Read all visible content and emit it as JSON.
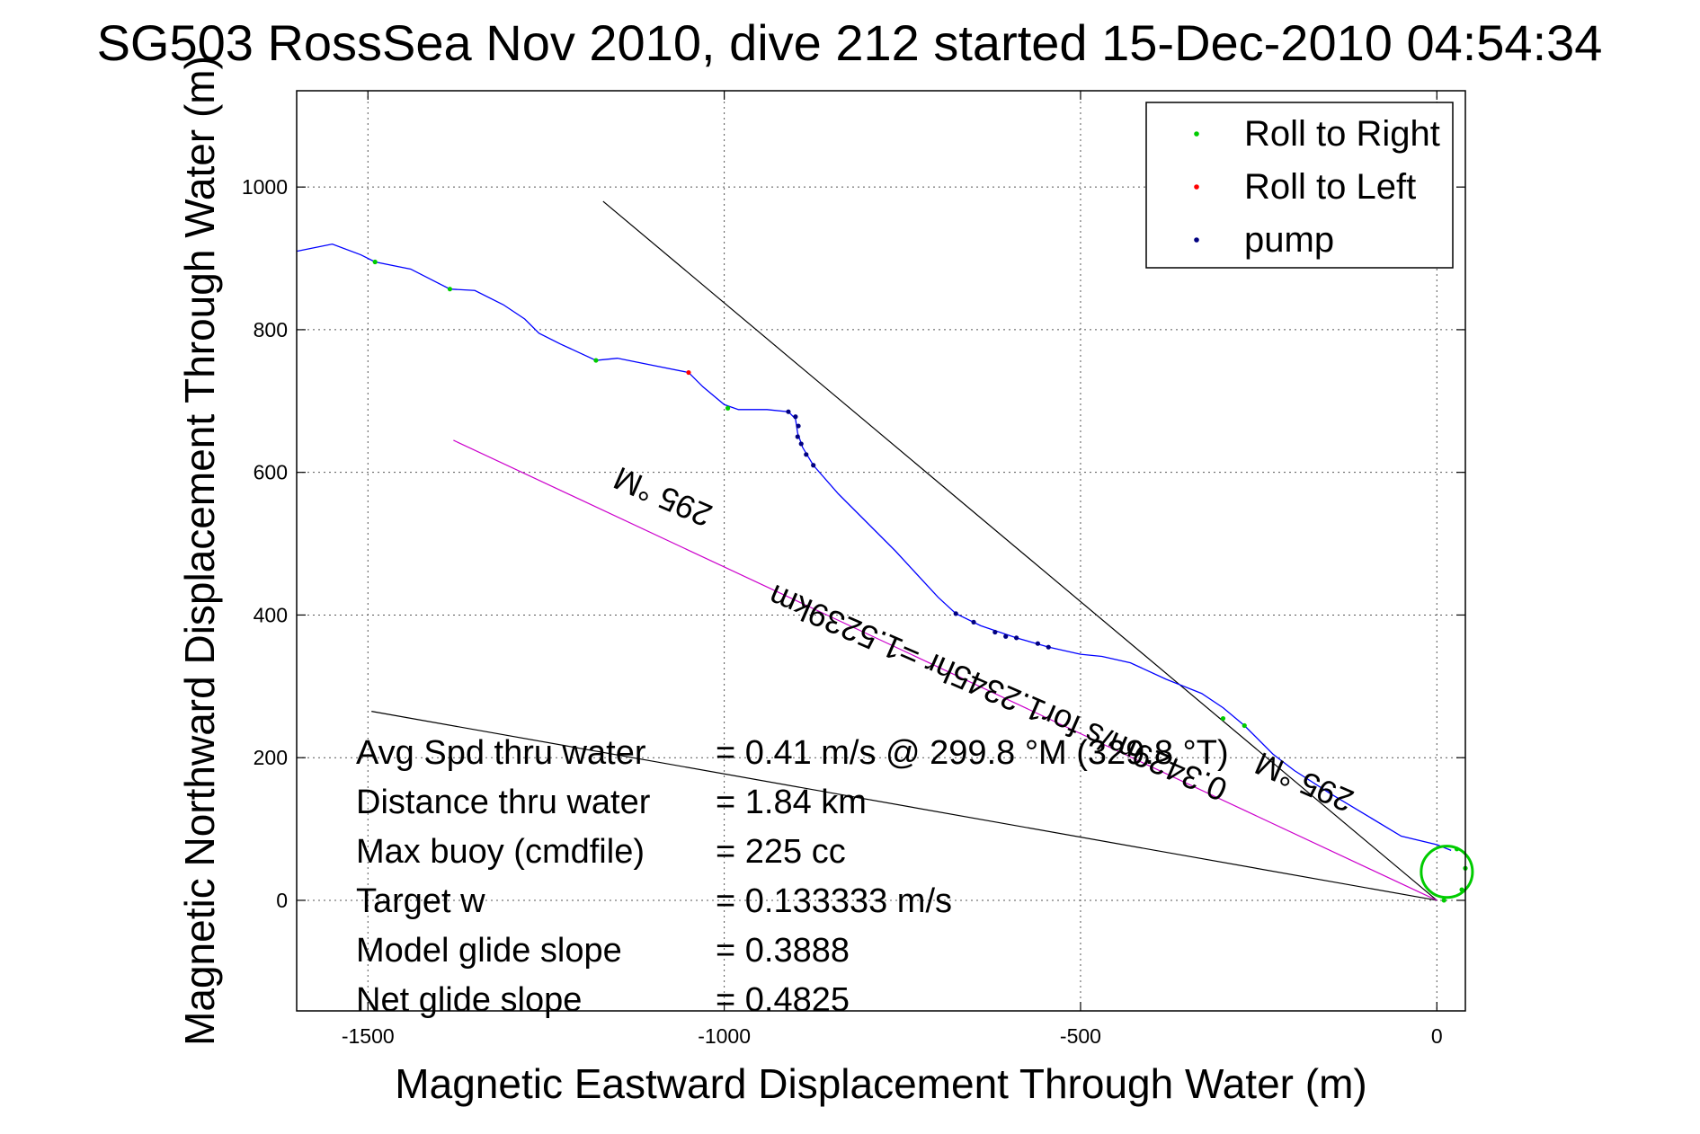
{
  "chart_data": {
    "type": "scatter",
    "title": "SG503 RossSea Nov 2010, dive 212 started 15-Dec-2010 04:54:34",
    "xlabel": "Magnetic Eastward Displacement Through Water (m)",
    "ylabel": "Magnetic Northward Displacement Through Water (m)",
    "xlim": [
      -1600,
      40
    ],
    "ylim": [
      -155,
      1135
    ],
    "xticks": [
      -1500,
      -1000,
      -500,
      0
    ],
    "yticks": [
      0,
      200,
      400,
      600,
      800,
      1000
    ],
    "grid": true,
    "legend_position": "top-right",
    "series": [
      {
        "name": "Roll to Right",
        "color": "#00cc00",
        "points": [
          [
            -1490,
            895
          ],
          [
            -1385,
            857
          ],
          [
            -1180,
            757
          ],
          [
            -995,
            690
          ],
          [
            -300,
            255
          ],
          [
            -270,
            245
          ],
          [
            28,
            72
          ],
          [
            40,
            45
          ],
          [
            35,
            15
          ],
          [
            10,
            0
          ]
        ]
      },
      {
        "name": "Roll to Left",
        "color": "#ff0000",
        "points": [
          [
            -1050,
            740
          ]
        ]
      },
      {
        "name": "pump",
        "color": "#000080",
        "points": [
          [
            -910,
            685
          ],
          [
            -900,
            678
          ],
          [
            -896,
            665
          ],
          [
            -897,
            650
          ],
          [
            -892,
            640
          ],
          [
            -885,
            625
          ],
          [
            -875,
            610
          ],
          [
            -675,
            402
          ],
          [
            -650,
            390
          ],
          [
            -620,
            376
          ],
          [
            -605,
            370
          ],
          [
            -590,
            368
          ],
          [
            -560,
            360
          ],
          [
            -545,
            355
          ]
        ]
      }
    ],
    "track": {
      "color": "#0000ff",
      "points": [
        [
          -1600,
          910
        ],
        [
          -1550,
          920
        ],
        [
          -1510,
          905
        ],
        [
          -1490,
          895
        ],
        [
          -1440,
          885
        ],
        [
          -1385,
          857
        ],
        [
          -1350,
          855
        ],
        [
          -1310,
          835
        ],
        [
          -1280,
          815
        ],
        [
          -1260,
          795
        ],
        [
          -1230,
          780
        ],
        [
          -1180,
          757
        ],
        [
          -1150,
          760
        ],
        [
          -1100,
          750
        ],
        [
          -1050,
          740
        ],
        [
          -1030,
          720
        ],
        [
          -1000,
          695
        ],
        [
          -980,
          688
        ],
        [
          -940,
          688
        ],
        [
          -910,
          685
        ],
        [
          -900,
          675
        ],
        [
          -897,
          655
        ],
        [
          -890,
          635
        ],
        [
          -875,
          610
        ],
        [
          -840,
          570
        ],
        [
          -760,
          490
        ],
        [
          -700,
          425
        ],
        [
          -675,
          402
        ],
        [
          -640,
          385
        ],
        [
          -590,
          368
        ],
        [
          -545,
          355
        ],
        [
          -500,
          345
        ],
        [
          -470,
          342
        ],
        [
          -430,
          333
        ],
        [
          -380,
          310
        ],
        [
          -330,
          290
        ],
        [
          -300,
          270
        ],
        [
          -270,
          245
        ],
        [
          -230,
          205
        ],
        [
          -200,
          182
        ],
        [
          -150,
          150
        ],
        [
          -100,
          120
        ],
        [
          -50,
          90
        ],
        [
          0,
          78
        ],
        [
          20,
          70
        ]
      ]
    },
    "loop": {
      "color": "#00cc00",
      "center": [
        14,
        40
      ],
      "radius": 36
    },
    "lines": [
      {
        "color": "#000000",
        "points": [
          [
            -1170,
            980
          ],
          [
            0,
            0
          ]
        ]
      },
      {
        "color": "#000000",
        "points": [
          [
            -1495,
            265
          ],
          [
            0,
            0
          ]
        ]
      },
      {
        "color": "#cc00cc",
        "points": [
          [
            -1380,
            645
          ],
          [
            0,
            0
          ]
        ]
      }
    ],
    "stats": [
      {
        "label": "Avg Spd thru water",
        "value": "=  0.41 m/s @ 299.8 °M (329.8 °T)"
      },
      {
        "label": "Distance thru water",
        "value": "=  1.84 km"
      },
      {
        "label": "Max buoy (cmdfile)",
        "value": "= 225 cc"
      },
      {
        "label": "Target w",
        "value": "= 0.133333 m/s"
      },
      {
        "label": "Model glide slope",
        "value": "= 0.3888"
      },
      {
        "label": "Net glide slope",
        "value": "= 0.4825"
      }
    ],
    "annotations": [
      {
        "text": "295 °M",
        "anchor": [
          -1080,
          580
        ],
        "angle": 203.5
      },
      {
        "text": "0.3429m/s for1.2345hr =1.5239km",
        "anchor": [
          -610,
          305
        ],
        "angle": 203.5
      },
      {
        "text": "295 °M",
        "anchor": [
          -180,
          180
        ],
        "angle": 203.5
      }
    ]
  }
}
